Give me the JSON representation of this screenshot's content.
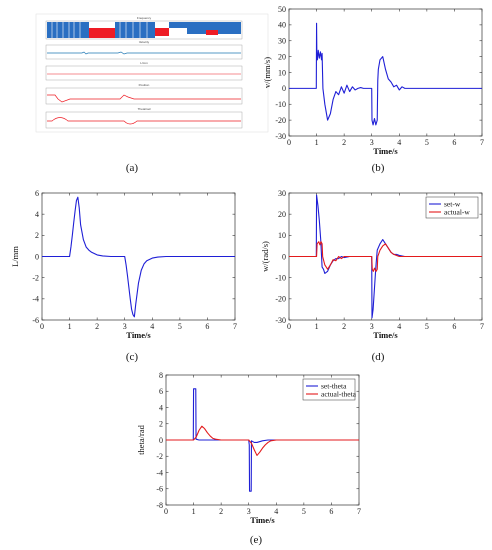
{
  "figure": {
    "captions": [
      "(a)",
      "(b)",
      "(c)",
      "(d)",
      "(e)"
    ]
  },
  "panel_a": {
    "strip_titles": [
      "Frequency",
      "Velocity",
      "L/mm",
      "Position",
      "Theta/rad"
    ]
  },
  "chart_data": [
    {
      "id": "b",
      "type": "line",
      "xlabel": "Time/s",
      "ylabel": "v/(mm/s)",
      "xlim": [
        0,
        7
      ],
      "ylim": [
        -30,
        50
      ],
      "xticks": [
        0,
        1,
        2,
        3,
        4,
        5,
        6,
        7
      ],
      "yticks": [
        -30,
        -20,
        -10,
        0,
        10,
        20,
        30,
        40,
        50
      ],
      "grid": false,
      "series": [
        {
          "color": "#1f1fd6",
          "x": [
            0,
            0.99,
            1.0,
            1.01,
            1.03,
            1.06,
            1.1,
            1.14,
            1.18,
            1.2,
            1.23,
            1.3,
            1.4,
            1.5,
            1.6,
            1.7,
            1.8,
            1.9,
            2.0,
            2.1,
            2.2,
            2.3,
            2.4,
            2.5,
            2.6,
            2.7,
            3.0,
            3.01,
            3.05,
            3.1,
            3.15,
            3.2,
            3.22,
            3.24,
            3.3,
            3.4,
            3.5,
            3.6,
            3.7,
            3.8,
            3.9,
            4.0,
            4.1,
            4.2,
            4.3,
            7.0
          ],
          "y": [
            0,
            0,
            41,
            22,
            18,
            24,
            19,
            23,
            18,
            22,
            0,
            -10,
            -20,
            -16,
            -7,
            -2,
            -4,
            1,
            -3,
            2,
            -2,
            1,
            -1,
            0,
            0.5,
            0,
            0,
            -20,
            -23,
            -19,
            -23,
            -20,
            5,
            12,
            18,
            20,
            12,
            6,
            4,
            1,
            2,
            -1,
            1,
            0,
            0,
            0
          ]
        }
      ]
    },
    {
      "id": "c",
      "type": "line",
      "xlabel": "Time/s",
      "ylabel": "L/mm",
      "xlim": [
        0,
        7
      ],
      "ylim": [
        -6,
        6
      ],
      "xticks": [
        0,
        1,
        2,
        3,
        4,
        5,
        6,
        7
      ],
      "yticks": [
        -6,
        -4,
        -2,
        0,
        2,
        4,
        6
      ],
      "grid": false,
      "series": [
        {
          "color": "#1f1fd6",
          "x": [
            0,
            1.0,
            1.05,
            1.1,
            1.15,
            1.2,
            1.25,
            1.3,
            1.35,
            1.4,
            1.5,
            1.6,
            1.7,
            1.8,
            2.0,
            2.2,
            2.5,
            3.0,
            3.05,
            3.1,
            3.15,
            3.2,
            3.25,
            3.3,
            3.35,
            3.4,
            3.5,
            3.6,
            3.7,
            3.8,
            4.0,
            4.2,
            4.5,
            7.0
          ],
          "y": [
            0,
            0,
            0.9,
            2.0,
            3.2,
            4.3,
            5.3,
            5.6,
            4.6,
            3.0,
            1.6,
            0.9,
            0.6,
            0.4,
            0.15,
            0.05,
            0,
            0,
            -0.8,
            -1.8,
            -2.9,
            -4.0,
            -5.0,
            -5.5,
            -5.7,
            -4.5,
            -2.5,
            -1.3,
            -0.7,
            -0.4,
            -0.15,
            -0.05,
            0,
            0
          ]
        }
      ]
    },
    {
      "id": "d",
      "type": "line",
      "xlabel": "Time/s",
      "ylabel": "w/(rad/s)",
      "xlim": [
        0,
        7
      ],
      "ylim": [
        -30,
        30
      ],
      "xticks": [
        0,
        1,
        2,
        3,
        4,
        5,
        6,
        7
      ],
      "yticks": [
        -30,
        -20,
        -10,
        0,
        10,
        20,
        30
      ],
      "grid": false,
      "legend": "top-right",
      "series": [
        {
          "name": "set-w",
          "color": "#1f1fd6",
          "x": [
            0,
            0.99,
            1.0,
            1.05,
            1.1,
            1.15,
            1.2,
            1.25,
            1.3,
            1.4,
            1.5,
            1.6,
            1.7,
            1.8,
            1.9,
            2.0,
            2.2,
            3.0,
            3.01,
            3.05,
            3.1,
            3.15,
            3.2,
            3.3,
            3.4,
            3.5,
            3.6,
            3.7,
            3.8,
            3.9,
            4.0,
            4.2,
            7.0
          ],
          "y": [
            0,
            0,
            29,
            24,
            17,
            8,
            -5,
            -6,
            -8,
            -7,
            -4,
            -2,
            -1,
            -1,
            0,
            -0.5,
            0,
            0,
            -29,
            -25,
            -15,
            -5,
            3,
            6,
            8,
            6,
            4,
            2,
            1,
            1,
            0.5,
            0,
            0
          ]
        },
        {
          "name": "actual-w",
          "color": "#e31a1c",
          "x": [
            0,
            1.0,
            1.02,
            1.08,
            1.12,
            1.16,
            1.2,
            1.22,
            1.3,
            1.4,
            1.5,
            1.6,
            1.7,
            1.8,
            1.9,
            2.0,
            2.2,
            3.0,
            3.02,
            3.06,
            3.1,
            3.16,
            3.2,
            3.22,
            3.3,
            3.4,
            3.5,
            3.6,
            3.7,
            3.8,
            3.9,
            4.0,
            4.2,
            7.0
          ],
          "y": [
            0,
            0,
            6,
            7,
            5.5,
            7,
            6,
            0,
            -4,
            -6,
            -4,
            -1.5,
            -2,
            0,
            -1,
            0,
            0,
            0,
            -6,
            -7,
            -5.5,
            -7,
            -6,
            0,
            3,
            5,
            6,
            4,
            2,
            1,
            0.5,
            0,
            0,
            0
          ]
        }
      ]
    },
    {
      "id": "e",
      "type": "line",
      "xlabel": "Time/s",
      "ylabel": "theta/rad",
      "xlim": [
        0,
        7
      ],
      "ylim": [
        -8,
        8
      ],
      "xticks": [
        0,
        1,
        2,
        3,
        4,
        5,
        6,
        7
      ],
      "yticks": [
        -8,
        -6,
        -4,
        -2,
        0,
        2,
        4,
        6,
        8
      ],
      "grid": false,
      "legend": "top-right",
      "series": [
        {
          "name": "set-theta",
          "color": "#1f1fd6",
          "x": [
            0,
            0.99,
            1.0,
            1.08,
            1.09,
            1.2,
            1.3,
            1.5,
            1.7,
            3.0,
            3.02,
            3.03,
            3.09,
            3.1,
            3.2,
            3.3,
            3.5,
            3.7,
            7.0
          ],
          "y": [
            0,
            0,
            6.3,
            6.3,
            0.1,
            0,
            0,
            0,
            0,
            0,
            -0.6,
            -6.3,
            -6.3,
            -0.1,
            -0.3,
            -0.3,
            -0.1,
            0,
            0
          ]
        },
        {
          "name": "actual-theta",
          "color": "#e31a1c",
          "x": [
            0,
            1.0,
            1.1,
            1.2,
            1.3,
            1.4,
            1.5,
            1.6,
            1.7,
            1.8,
            2.0,
            2.3,
            3.0,
            3.1,
            3.2,
            3.3,
            3.4,
            3.5,
            3.6,
            3.7,
            3.8,
            4.0,
            4.3,
            7.0
          ],
          "y": [
            0,
            0,
            0.4,
            1.2,
            1.7,
            1.4,
            0.9,
            0.5,
            0.2,
            0.1,
            0,
            0,
            0,
            -0.4,
            -1.2,
            -1.9,
            -1.5,
            -1.0,
            -0.6,
            -0.3,
            -0.1,
            0,
            0,
            0
          ]
        }
      ]
    }
  ],
  "legend_labels": {
    "d": [
      "set-w",
      "actual-w"
    ],
    "e": [
      "set-theta",
      "actual-theta"
    ]
  }
}
